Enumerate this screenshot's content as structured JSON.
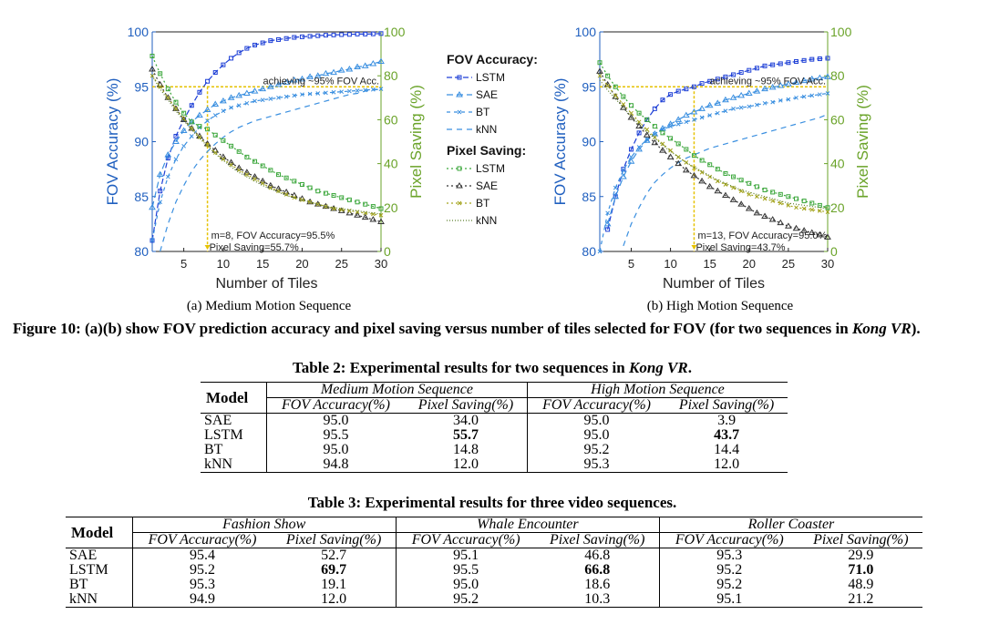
{
  "figure": {
    "legend": {
      "accuracy_title": "FOV Accuracy:",
      "saving_title": "Pixel Saving:",
      "accuracy_entries": [
        "LSTM",
        "SAE",
        "BT",
        "kNN"
      ],
      "saving_entries": [
        "LSTM",
        "SAE",
        "BT",
        "kNN"
      ]
    },
    "caption_label": "Figure 10:",
    "caption_text": "(a)(b) show FOV prediction accuracy and pixel saving versus number of tiles selected for FOV (for two sequences in",
    "caption_italic": "Kong VR",
    "caption_end": ")."
  },
  "colors": {
    "accuracy": "#1d3fd6",
    "accuracy_light": "#3a8fe0",
    "saving": "#3aa63a",
    "sae_saving": "#333333",
    "bt_saving": "#a3a31c",
    "knn_saving": "#5a7d2a",
    "left_axis": "#1f5fbf",
    "right_axis": "#6aa329",
    "threshold": "#e6c200"
  },
  "chart_data": [
    {
      "type": "line",
      "subtitle": "(a) Medium Motion Sequence",
      "xlabel": "Number of Tiles",
      "ylabel": "FOV Accuracy (%)",
      "y2label": "Pixel Saving (%)",
      "xlim": [
        1,
        30
      ],
      "xticks": [
        "5",
        "10",
        "15",
        "20",
        "25",
        "30"
      ],
      "ylim": [
        80,
        100
      ],
      "yticks": [
        "80",
        "85",
        "90",
        "95",
        "100"
      ],
      "y2lim": [
        0,
        100
      ],
      "y2ticks": [
        "0",
        "20",
        "40",
        "60",
        "80",
        "100"
      ],
      "threshold_label": "achieving ~95% FOV Acc.",
      "marker_x": 8,
      "annotation_1": "m=8, FOV Accuracy=95.5%",
      "annotation_2": "Pixel Saving=55.7%",
      "x": [
        1,
        2,
        3,
        4,
        5,
        6,
        7,
        8,
        9,
        10,
        11,
        12,
        13,
        14,
        15,
        16,
        17,
        18,
        19,
        20,
        21,
        22,
        23,
        24,
        25,
        26,
        27,
        28,
        29,
        30
      ],
      "accuracy_series": [
        {
          "name": "LSTM",
          "values": [
            81.0,
            85.5,
            88.5,
            90.5,
            92.0,
            93.3,
            94.5,
            95.5,
            96.3,
            97.0,
            97.6,
            98.1,
            98.5,
            98.8,
            99.0,
            99.2,
            99.3,
            99.4,
            99.5,
            99.55,
            99.6,
            99.65,
            99.7,
            99.72,
            99.75,
            99.77,
            99.8,
            99.8,
            99.82,
            99.85
          ]
        },
        {
          "name": "SAE",
          "values": [
            84.0,
            87.0,
            88.8,
            90.0,
            91.0,
            91.8,
            92.4,
            92.9,
            93.4,
            93.7,
            94.0,
            94.2,
            94.4,
            94.6,
            94.8,
            95.0,
            95.2,
            95.4,
            95.6,
            95.7,
            95.9,
            96.0,
            96.2,
            96.3,
            96.5,
            96.6,
            96.8,
            96.9,
            97.1,
            97.3
          ]
        },
        {
          "name": "BT",
          "values": [
            81.0,
            84.5,
            86.8,
            88.4,
            89.6,
            90.5,
            91.3,
            91.9,
            92.4,
            92.8,
            93.1,
            93.3,
            93.5,
            93.7,
            93.8,
            93.9,
            94.0,
            94.1,
            94.2,
            94.3,
            94.35,
            94.4,
            94.45,
            94.5,
            94.55,
            94.6,
            94.65,
            94.7,
            94.75,
            94.8
          ]
        },
        {
          "name": "kNN",
          "values": [
            76.0,
            80.0,
            82.5,
            84.5,
            86.0,
            87.3,
            88.3,
            89.1,
            89.8,
            90.4,
            90.9,
            91.3,
            91.6,
            91.9,
            92.1,
            92.3,
            92.5,
            92.7,
            92.9,
            93.1,
            93.3,
            93.5,
            93.7,
            93.9,
            94.1,
            94.3,
            94.4,
            94.6,
            94.7,
            94.8
          ]
        }
      ],
      "saving_series": [
        {
          "name": "LSTM",
          "values": [
            89.0,
            81.0,
            74.0,
            68.0,
            63.0,
            59.0,
            57.0,
            55.7,
            53.0,
            50.5,
            48.0,
            45.5,
            43.0,
            41.0,
            39.0,
            37.0,
            35.0,
            33.5,
            32.0,
            30.5,
            29.0,
            27.5,
            26.5,
            25.5,
            24.5,
            23.5,
            22.5,
            21.5,
            20.5,
            19.5
          ]
        },
        {
          "name": "SAE",
          "values": [
            83.0,
            76.0,
            70.0,
            65.0,
            60.0,
            56.0,
            52.5,
            49.0,
            46.0,
            43.0,
            40.5,
            38.0,
            36.0,
            34.0,
            32.0,
            30.0,
            28.5,
            27.0,
            25.5,
            24.0,
            22.5,
            21.5,
            20.5,
            19.5,
            18.5,
            17.5,
            16.5,
            15.5,
            14.5,
            13.5
          ]
        },
        {
          "name": "BT",
          "values": [
            80.0,
            75.0,
            70.0,
            65.0,
            60.5,
            56.0,
            52.0,
            48.5,
            45.0,
            42.0,
            39.5,
            37.0,
            35.0,
            33.0,
            31.0,
            29.0,
            27.5,
            26.0,
            24.5,
            23.5,
            22.5,
            21.5,
            20.5,
            19.5,
            19.0,
            18.5,
            18.0,
            17.5,
            17.0,
            16.5
          ]
        },
        {
          "name": "kNN",
          "values": [
            80.0,
            74.0,
            69.0,
            64.0,
            59.5,
            55.5,
            51.5,
            48.0,
            44.5,
            41.5,
            38.5,
            36.0,
            34.0,
            32.0,
            30.0,
            28.5,
            27.0,
            25.5,
            24.5,
            23.5,
            22.5,
            21.5,
            20.5,
            20.0,
            19.5,
            19.0,
            18.5,
            18.0,
            17.5,
            17.0
          ]
        }
      ]
    },
    {
      "type": "line",
      "subtitle": "(b) High Motion Sequence",
      "xlabel": "Number of Tiles",
      "ylabel": "FOV Accuracy (%)",
      "y2label": "Pixel Saving (%)",
      "xlim": [
        1,
        30
      ],
      "xticks": [
        "5",
        "10",
        "15",
        "20",
        "25",
        "30"
      ],
      "ylim": [
        80,
        100
      ],
      "yticks": [
        "80",
        "85",
        "90",
        "95",
        "100"
      ],
      "y2lim": [
        0,
        100
      ],
      "y2ticks": [
        "0",
        "20",
        "40",
        "60",
        "80",
        "100"
      ],
      "threshold_label": "achieving ~95% FOV Acc.",
      "marker_x": 13,
      "annotation_1": "m=13, FOV Accuracy=95.0%",
      "annotation_2": "Pixel Saving=43.7%",
      "x": [
        1,
        2,
        3,
        4,
        5,
        6,
        7,
        8,
        9,
        10,
        11,
        12,
        13,
        14,
        15,
        16,
        17,
        18,
        19,
        20,
        21,
        22,
        23,
        24,
        25,
        26,
        27,
        28,
        29,
        30
      ],
      "accuracy_series": [
        {
          "name": "LSTM",
          "values": [
            78.0,
            82.0,
            85.0,
            87.5,
            89.3,
            90.8,
            92.0,
            93.0,
            93.8,
            94.3,
            94.6,
            94.8,
            95.0,
            95.3,
            95.5,
            95.7,
            95.9,
            96.1,
            96.3,
            96.5,
            96.7,
            96.9,
            97.0,
            97.1,
            97.2,
            97.3,
            97.4,
            97.5,
            97.55,
            97.6
          ]
        },
        {
          "name": "SAE",
          "values": [
            79.0,
            82.5,
            85.0,
            86.8,
            88.2,
            89.3,
            90.1,
            90.7,
            91.2,
            91.6,
            92.0,
            92.4,
            92.7,
            93.0,
            93.3,
            93.5,
            93.8,
            94.0,
            94.2,
            94.4,
            94.6,
            94.8,
            94.95,
            95.1,
            95.25,
            95.4,
            95.55,
            95.7,
            95.8,
            95.9
          ]
        },
        {
          "name": "BT",
          "values": [
            80.0,
            83.5,
            85.8,
            87.4,
            88.6,
            89.5,
            90.2,
            90.7,
            91.1,
            91.4,
            91.6,
            91.8,
            92.0,
            92.2,
            92.4,
            92.6,
            92.8,
            93.0,
            93.1,
            93.2,
            93.35,
            93.5,
            93.6,
            93.75,
            93.85,
            94.0,
            94.1,
            94.2,
            94.3,
            94.4
          ]
        },
        {
          "name": "kNN",
          "values": [
            73.0,
            76.0,
            78.5,
            80.5,
            82.5,
            84.0,
            85.3,
            86.3,
            87.0,
            87.6,
            88.1,
            88.5,
            88.8,
            89.1,
            89.4,
            89.6,
            89.8,
            90.0,
            90.2,
            90.4,
            90.6,
            90.8,
            91.0,
            91.2,
            91.4,
            91.6,
            91.8,
            92.0,
            92.2,
            92.5
          ]
        }
      ],
      "saving_series": [
        {
          "name": "LSTM",
          "values": [
            86.0,
            80.0,
            75.0,
            70.5,
            66.5,
            63.0,
            60.0,
            57.0,
            54.0,
            51.5,
            49.0,
            46.5,
            43.7,
            41.5,
            39.5,
            37.5,
            35.5,
            34.0,
            32.5,
            31.0,
            29.5,
            28.0,
            27.0,
            26.0,
            25.0,
            24.0,
            23.0,
            22.0,
            21.0,
            20.0
          ]
        },
        {
          "name": "SAE",
          "values": [
            82.0,
            76.0,
            70.5,
            65.5,
            61.0,
            57.0,
            53.0,
            49.5,
            46.0,
            43.0,
            40.0,
            37.0,
            34.5,
            32.0,
            29.5,
            27.5,
            25.5,
            23.5,
            21.5,
            19.5,
            17.5,
            16.0,
            14.5,
            13.0,
            11.5,
            10.5,
            9.5,
            8.5,
            7.5,
            6.5
          ]
        },
        {
          "name": "BT",
          "values": [
            80.0,
            75.5,
            71.0,
            67.0,
            63.0,
            59.0,
            55.5,
            52.0,
            49.0,
            46.0,
            43.0,
            40.5,
            38.0,
            36.0,
            34.0,
            32.0,
            30.5,
            29.0,
            27.5,
            26.0,
            25.0,
            24.0,
            23.0,
            22.0,
            21.0,
            20.0,
            19.5,
            19.0,
            18.5,
            18.0
          ]
        },
        {
          "name": "kNN",
          "values": [
            78.0,
            73.5,
            69.5,
            65.5,
            61.5,
            58.0,
            54.5,
            51.5,
            48.5,
            45.5,
            43.0,
            40.5,
            38.5,
            36.5,
            34.5,
            32.5,
            31.0,
            29.5,
            28.0,
            27.0,
            26.0,
            25.0,
            24.0,
            23.0,
            22.0,
            21.5,
            21.0,
            20.5,
            20.0,
            19.5
          ]
        }
      ]
    }
  ],
  "table2": {
    "caption_label": "Table 2:",
    "caption_text": "Experimental results for two sequences in",
    "caption_italic": "Kong VR",
    "caption_end": ".",
    "model_header": "Model",
    "groups": [
      "Medium Motion Sequence",
      "High Motion Sequence"
    ],
    "cols": [
      "FOV Accuracy(%)",
      "Pixel Saving(%)",
      "FOV Accuracy(%)",
      "Pixel Saving(%)"
    ],
    "rows": [
      {
        "model": "SAE",
        "vals": [
          "95.0",
          "34.0",
          "95.0",
          "3.9"
        ]
      },
      {
        "model": "LSTM",
        "vals": [
          "95.5",
          "55.7",
          "95.0",
          "43.7"
        ]
      },
      {
        "model": "BT",
        "vals": [
          "95.0",
          "14.8",
          "95.2",
          "14.4"
        ]
      },
      {
        "model": "kNN",
        "vals": [
          "94.8",
          "12.0",
          "95.3",
          "12.0"
        ]
      }
    ]
  },
  "table3": {
    "caption_label": "Table 3:",
    "caption_text": "Experimental results for three video sequences.",
    "model_header": "Model",
    "groups": [
      "Fashion Show",
      "Whale Encounter",
      "Roller Coaster"
    ],
    "cols": [
      "FOV Accuracy(%)",
      "Pixel Saving(%)",
      "FOV Accuracy(%)",
      "Pixel Saving(%)",
      "FOV Accuracy(%)",
      "Pixel Saving(%)"
    ],
    "rows": [
      {
        "model": "SAE",
        "vals": [
          "95.4",
          "52.7",
          "95.1",
          "46.8",
          "95.3",
          "29.9"
        ]
      },
      {
        "model": "LSTM",
        "vals": [
          "95.2",
          "69.7",
          "95.5",
          "66.8",
          "95.2",
          "71.0"
        ]
      },
      {
        "model": "BT",
        "vals": [
          "95.3",
          "19.1",
          "95.0",
          "18.6",
          "95.2",
          "48.9"
        ]
      },
      {
        "model": "kNN",
        "vals": [
          "94.9",
          "12.0",
          "95.2",
          "10.3",
          "95.1",
          "21.2"
        ]
      }
    ]
  }
}
